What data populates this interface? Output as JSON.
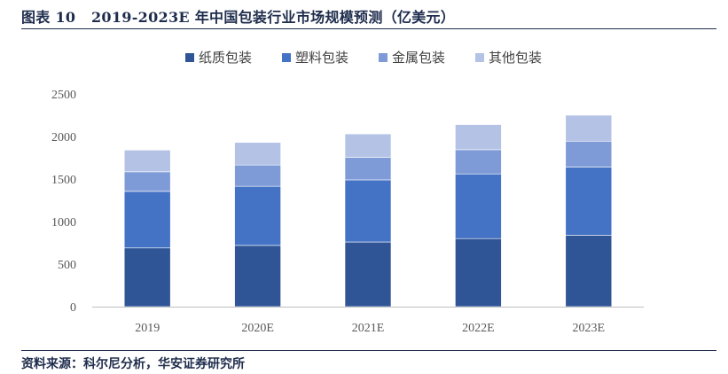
{
  "header": {
    "figure_label": "图表 10",
    "title": "2019-2023E 年中国包装行业市场规模预测（亿美元）"
  },
  "footer": {
    "source": "资料来源：科尔尼分析，华安证券研究所"
  },
  "chart_data": {
    "type": "bar",
    "stacked": true,
    "title": "",
    "xlabel": "",
    "ylabel": "",
    "categories": [
      "2019",
      "2020E",
      "2021E",
      "2022E",
      "2023E"
    ],
    "series": [
      {
        "name": "纸质包装",
        "color": "#2f5597",
        "values": [
          690,
          720,
          760,
          800,
          840
        ]
      },
      {
        "name": "塑料包装",
        "color": "#4472c4",
        "values": [
          665,
          695,
          730,
          760,
          800
        ]
      },
      {
        "name": "金属包装",
        "color": "#7f9bd7",
        "values": [
          230,
          250,
          265,
          285,
          305
        ]
      },
      {
        "name": "其他包装",
        "color": "#b4c2e6",
        "values": [
          255,
          265,
          275,
          295,
          305
        ]
      }
    ],
    "ylim": [
      0,
      2500
    ],
    "yticks": [
      0,
      500,
      1000,
      1500,
      2000,
      2500
    ],
    "grid": false,
    "legend_position": "top-center"
  }
}
